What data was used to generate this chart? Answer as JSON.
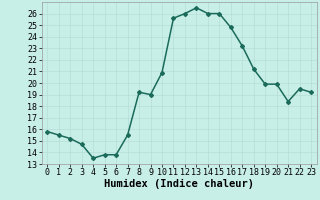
{
  "x": [
    0,
    1,
    2,
    3,
    4,
    5,
    6,
    7,
    8,
    9,
    10,
    11,
    12,
    13,
    14,
    15,
    16,
    17,
    18,
    19,
    20,
    21,
    22,
    23
  ],
  "y": [
    15.8,
    15.5,
    15.2,
    14.7,
    13.5,
    13.8,
    13.8,
    15.5,
    19.2,
    19.0,
    20.9,
    25.6,
    26.0,
    26.5,
    26.0,
    26.0,
    24.8,
    23.2,
    21.2,
    19.9,
    19.9,
    18.4,
    19.5,
    19.2
  ],
  "title": "",
  "xlabel": "Humidex (Indice chaleur)",
  "ylabel": "",
  "ylim": [
    13,
    27
  ],
  "xlim": [
    -0.5,
    23.5
  ],
  "yticks": [
    13,
    14,
    15,
    16,
    17,
    18,
    19,
    20,
    21,
    22,
    23,
    24,
    25,
    26
  ],
  "xticks": [
    0,
    1,
    2,
    3,
    4,
    5,
    6,
    7,
    8,
    9,
    10,
    11,
    12,
    13,
    14,
    15,
    16,
    17,
    18,
    19,
    20,
    21,
    22,
    23
  ],
  "line_color": "#1a6b5a",
  "marker": "D",
  "marker_size": 2.0,
  "bg_color": "#c8eee8",
  "grid_color": "#b8ddd8",
  "tick_fontsize": 6.0,
  "xlabel_fontsize": 7.5,
  "line_width": 1.1
}
